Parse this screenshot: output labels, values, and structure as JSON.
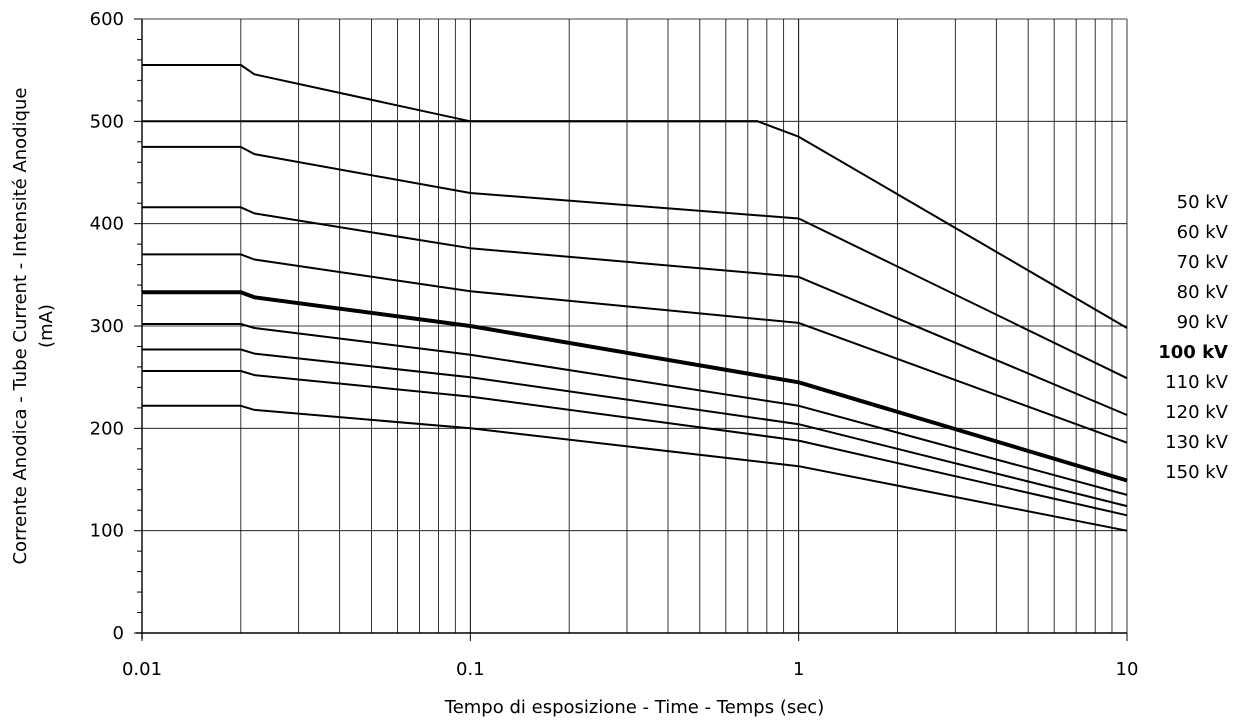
{
  "chart_data": {
    "type": "line",
    "title": "",
    "xlabel": "Tempo di esposizione - Time - Temps  (sec)",
    "ylabel_line1": "Corrente Anodica - Tube Current - Intensité Anodique",
    "ylabel_line2": "(mA)",
    "x_scale": "log",
    "xlim": [
      0.01,
      10
    ],
    "ylim": [
      0,
      600
    ],
    "x_ticks": [
      "0.01",
      "0.1",
      "1",
      "10"
    ],
    "y_ticks": [
      "0",
      "100",
      "200",
      "300",
      "400",
      "500",
      "600"
    ],
    "grid": true,
    "legend_position": "right",
    "legend_items": [
      {
        "label": "50 kV",
        "bold": false
      },
      {
        "label": "60 kV",
        "bold": false
      },
      {
        "label": "70 kV",
        "bold": false
      },
      {
        "label": "80 kV",
        "bold": false
      },
      {
        "label": "90 kV",
        "bold": false
      },
      {
        "label": "100 kV",
        "bold": true
      },
      {
        "label": "110 kV",
        "bold": false
      },
      {
        "label": "120 kV",
        "bold": false
      },
      {
        "label": "130 kV",
        "bold": false
      },
      {
        "label": "150 kV",
        "bold": false
      }
    ],
    "series": [
      {
        "bold": false,
        "points": [
          [
            0.01,
            555
          ],
          [
            0.02,
            555
          ],
          [
            0.022,
            546
          ],
          [
            0.1,
            500
          ],
          [
            0.7,
            500
          ],
          [
            0.75,
            500
          ],
          [
            1,
            485
          ],
          [
            10,
            298
          ]
        ]
      },
      {
        "bold": false,
        "points": [
          [
            0.01,
            500
          ],
          [
            0.1,
            500
          ],
          [
            0.75,
            500
          ]
        ]
      },
      {
        "bold": false,
        "points": [
          [
            0.01,
            475
          ],
          [
            0.02,
            475
          ],
          [
            0.022,
            468
          ],
          [
            0.1,
            430
          ],
          [
            1,
            405
          ],
          [
            10,
            249
          ]
        ]
      },
      {
        "bold": false,
        "points": [
          [
            0.01,
            416
          ],
          [
            0.02,
            416
          ],
          [
            0.022,
            410
          ],
          [
            0.1,
            376
          ],
          [
            1,
            348
          ],
          [
            10,
            213
          ]
        ]
      },
      {
        "bold": false,
        "points": [
          [
            0.01,
            370
          ],
          [
            0.02,
            370
          ],
          [
            0.022,
            365
          ],
          [
            0.1,
            334
          ],
          [
            1,
            303
          ],
          [
            10,
            186
          ]
        ]
      },
      {
        "bold": true,
        "points": [
          [
            0.01,
            333
          ],
          [
            0.02,
            333
          ],
          [
            0.022,
            328
          ],
          [
            0.1,
            300
          ],
          [
            1,
            245
          ],
          [
            10,
            149
          ]
        ]
      },
      {
        "bold": false,
        "points": [
          [
            0.01,
            302
          ],
          [
            0.02,
            302
          ],
          [
            0.022,
            298
          ],
          [
            0.1,
            272
          ],
          [
            1,
            222
          ],
          [
            10,
            135
          ]
        ]
      },
      {
        "bold": false,
        "points": [
          [
            0.01,
            277
          ],
          [
            0.02,
            277
          ],
          [
            0.022,
            273
          ],
          [
            0.1,
            250
          ],
          [
            1,
            204
          ],
          [
            10,
            124
          ]
        ]
      },
      {
        "bold": false,
        "points": [
          [
            0.01,
            256
          ],
          [
            0.02,
            256
          ],
          [
            0.022,
            252
          ],
          [
            0.1,
            231
          ],
          [
            1,
            188
          ],
          [
            10,
            115
          ]
        ]
      },
      {
        "bold": false,
        "points": [
          [
            0.01,
            222
          ],
          [
            0.02,
            222
          ],
          [
            0.022,
            218
          ],
          [
            0.1,
            200
          ],
          [
            1,
            163
          ],
          [
            10,
            100
          ]
        ]
      }
    ]
  }
}
